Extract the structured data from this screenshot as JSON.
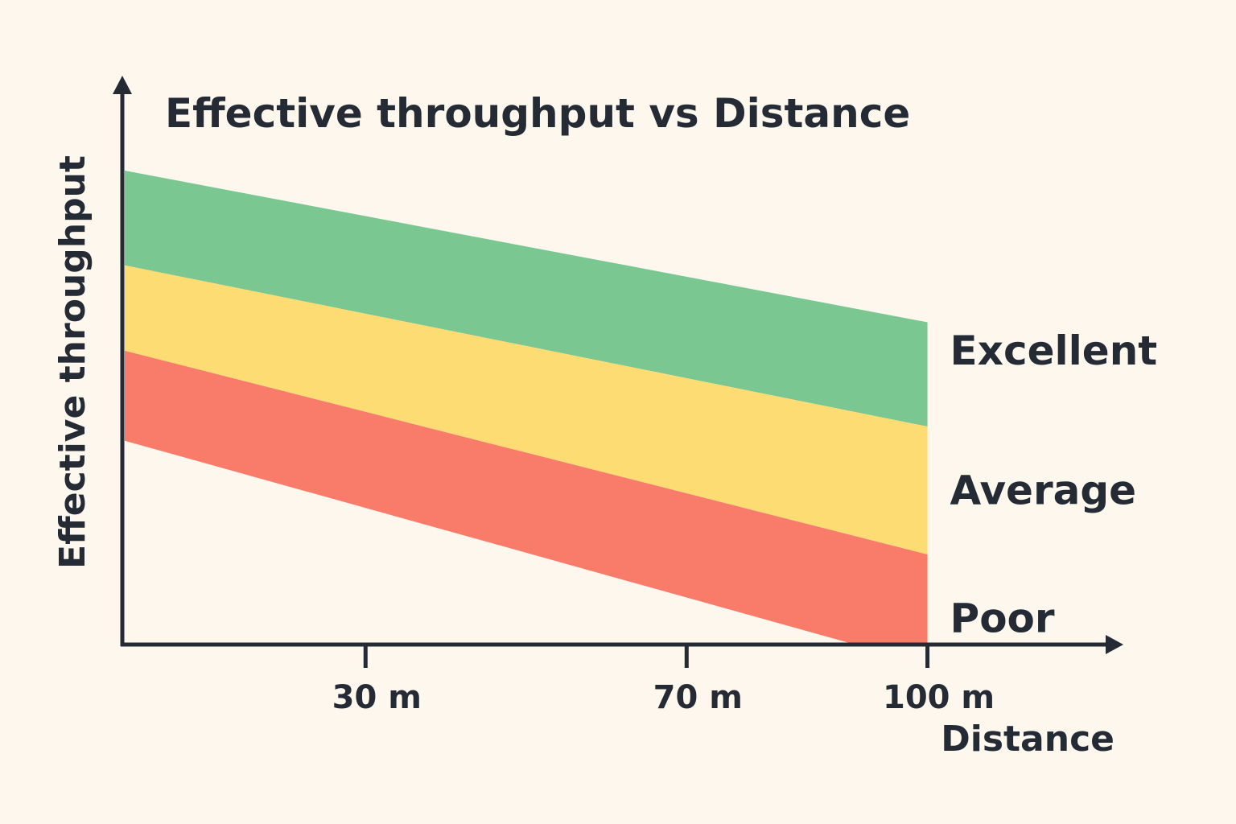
{
  "colors": {
    "background": "#fdf7ee",
    "axis": "#242b35",
    "text": "#242b35"
  },
  "chart_data": {
    "type": "area",
    "title": "Effective throughput vs Distance",
    "xlabel": "Distance",
    "ylabel": "Effective throughput",
    "xlim": [
      0,
      123
    ],
    "ylim": [
      0,
      100
    ],
    "xticks": [
      {
        "value": 30,
        "label": "30 m"
      },
      {
        "value": 70,
        "label": "70 m"
      },
      {
        "value": 100,
        "label": "100 m"
      }
    ],
    "grid": false,
    "legend": "right",
    "series": [
      {
        "name": "Excellent",
        "color": "#7ac792",
        "lower": {
          "x": [
            0,
            100
          ],
          "y": [
            80,
            46
          ]
        },
        "upper": {
          "x": [
            0,
            100
          ],
          "y": [
            100,
            68
          ]
        }
      },
      {
        "name": "Average",
        "color": "#fddc73",
        "lower": {
          "x": [
            0,
            100
          ],
          "y": [
            62,
            19
          ]
        },
        "upper": {
          "x": [
            0,
            100
          ],
          "y": [
            80,
            46
          ]
        }
      },
      {
        "name": "Poor",
        "color": "#f97c6b",
        "lower": {
          "x": [
            0,
            91,
            100
          ],
          "y": [
            43,
            0,
            0
          ]
        },
        "upper": {
          "x": [
            0,
            100
          ],
          "y": [
            62,
            19
          ]
        }
      }
    ]
  }
}
